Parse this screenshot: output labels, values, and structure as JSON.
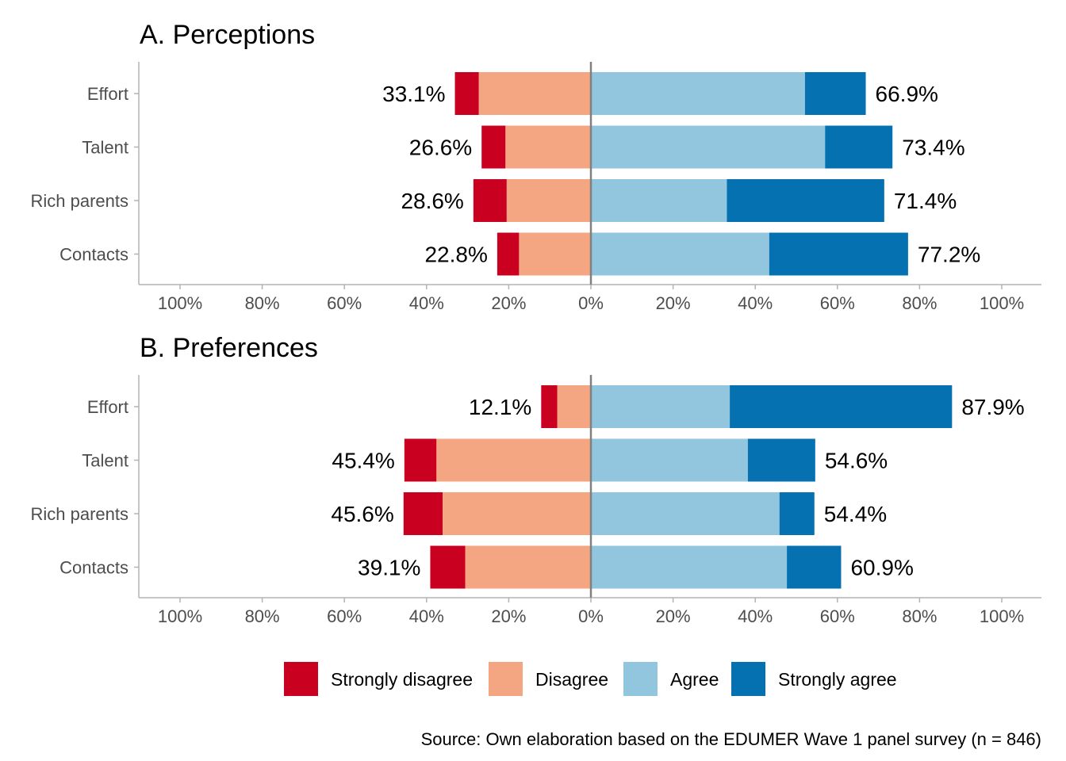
{
  "chart_data": [
    {
      "type": "bar",
      "orientation": "horizontal-diverging",
      "title": "A. Perceptions",
      "categories": [
        "Effort",
        "Talent",
        "Rich parents",
        "Contacts"
      ],
      "series": [
        {
          "name": "Strongly disagree",
          "color": "#ca0020",
          "side": "negative",
          "values": [
            5.8,
            5.8,
            8.1,
            5.3
          ]
        },
        {
          "name": "Disagree",
          "color": "#f4a582",
          "side": "negative",
          "values": [
            27.3,
            20.8,
            20.5,
            17.5
          ]
        },
        {
          "name": "Agree",
          "color": "#92c5de",
          "side": "positive",
          "values": [
            52.1,
            57.0,
            33.1,
            43.4
          ]
        },
        {
          "name": "Strongly agree",
          "color": "#0571b0",
          "side": "positive",
          "values": [
            14.8,
            16.4,
            38.3,
            33.8
          ]
        }
      ],
      "neg_labels": [
        "33.1%",
        "26.6%",
        "28.6%",
        "22.8%"
      ],
      "pos_labels": [
        "66.9%",
        "73.4%",
        "71.4%",
        "77.2%"
      ],
      "xlim": [
        -100,
        100
      ],
      "xticks": [
        "100%",
        "80%",
        "60%",
        "40%",
        "20%",
        "0%",
        "20%",
        "40%",
        "60%",
        "80%",
        "100%"
      ]
    },
    {
      "type": "bar",
      "orientation": "horizontal-diverging",
      "title": "B. Preferences",
      "categories": [
        "Effort",
        "Talent",
        "Rich parents",
        "Contacts"
      ],
      "series": [
        {
          "name": "Strongly disagree",
          "color": "#ca0020",
          "side": "negative",
          "values": [
            3.9,
            7.8,
            9.5,
            8.5
          ]
        },
        {
          "name": "Disagree",
          "color": "#f4a582",
          "side": "negative",
          "values": [
            8.2,
            37.6,
            36.1,
            30.6
          ]
        },
        {
          "name": "Agree",
          "color": "#92c5de",
          "side": "positive",
          "values": [
            33.8,
            38.2,
            45.9,
            47.7
          ]
        },
        {
          "name": "Strongly agree",
          "color": "#0571b0",
          "side": "positive",
          "values": [
            54.1,
            16.4,
            8.5,
            13.2
          ]
        }
      ],
      "neg_labels": [
        "12.1%",
        "45.4%",
        "45.6%",
        "39.1%"
      ],
      "pos_labels": [
        "87.9%",
        "54.6%",
        "54.4%",
        "60.9%"
      ],
      "xlim": [
        -100,
        100
      ],
      "xticks": [
        "100%",
        "80%",
        "60%",
        "40%",
        "20%",
        "0%",
        "20%",
        "40%",
        "60%",
        "80%",
        "100%"
      ]
    }
  ],
  "legend": {
    "position": "bottom",
    "items": [
      {
        "label": "Strongly disagree",
        "color": "#ca0020"
      },
      {
        "label": "Disagree",
        "color": "#f4a582"
      },
      {
        "label": "Agree",
        "color": "#92c5de"
      },
      {
        "label": "Strongly agree",
        "color": "#0571b0"
      }
    ]
  },
  "caption": "Source: Own elaboration based on the EDUMER Wave 1 panel survey (n = 846)"
}
